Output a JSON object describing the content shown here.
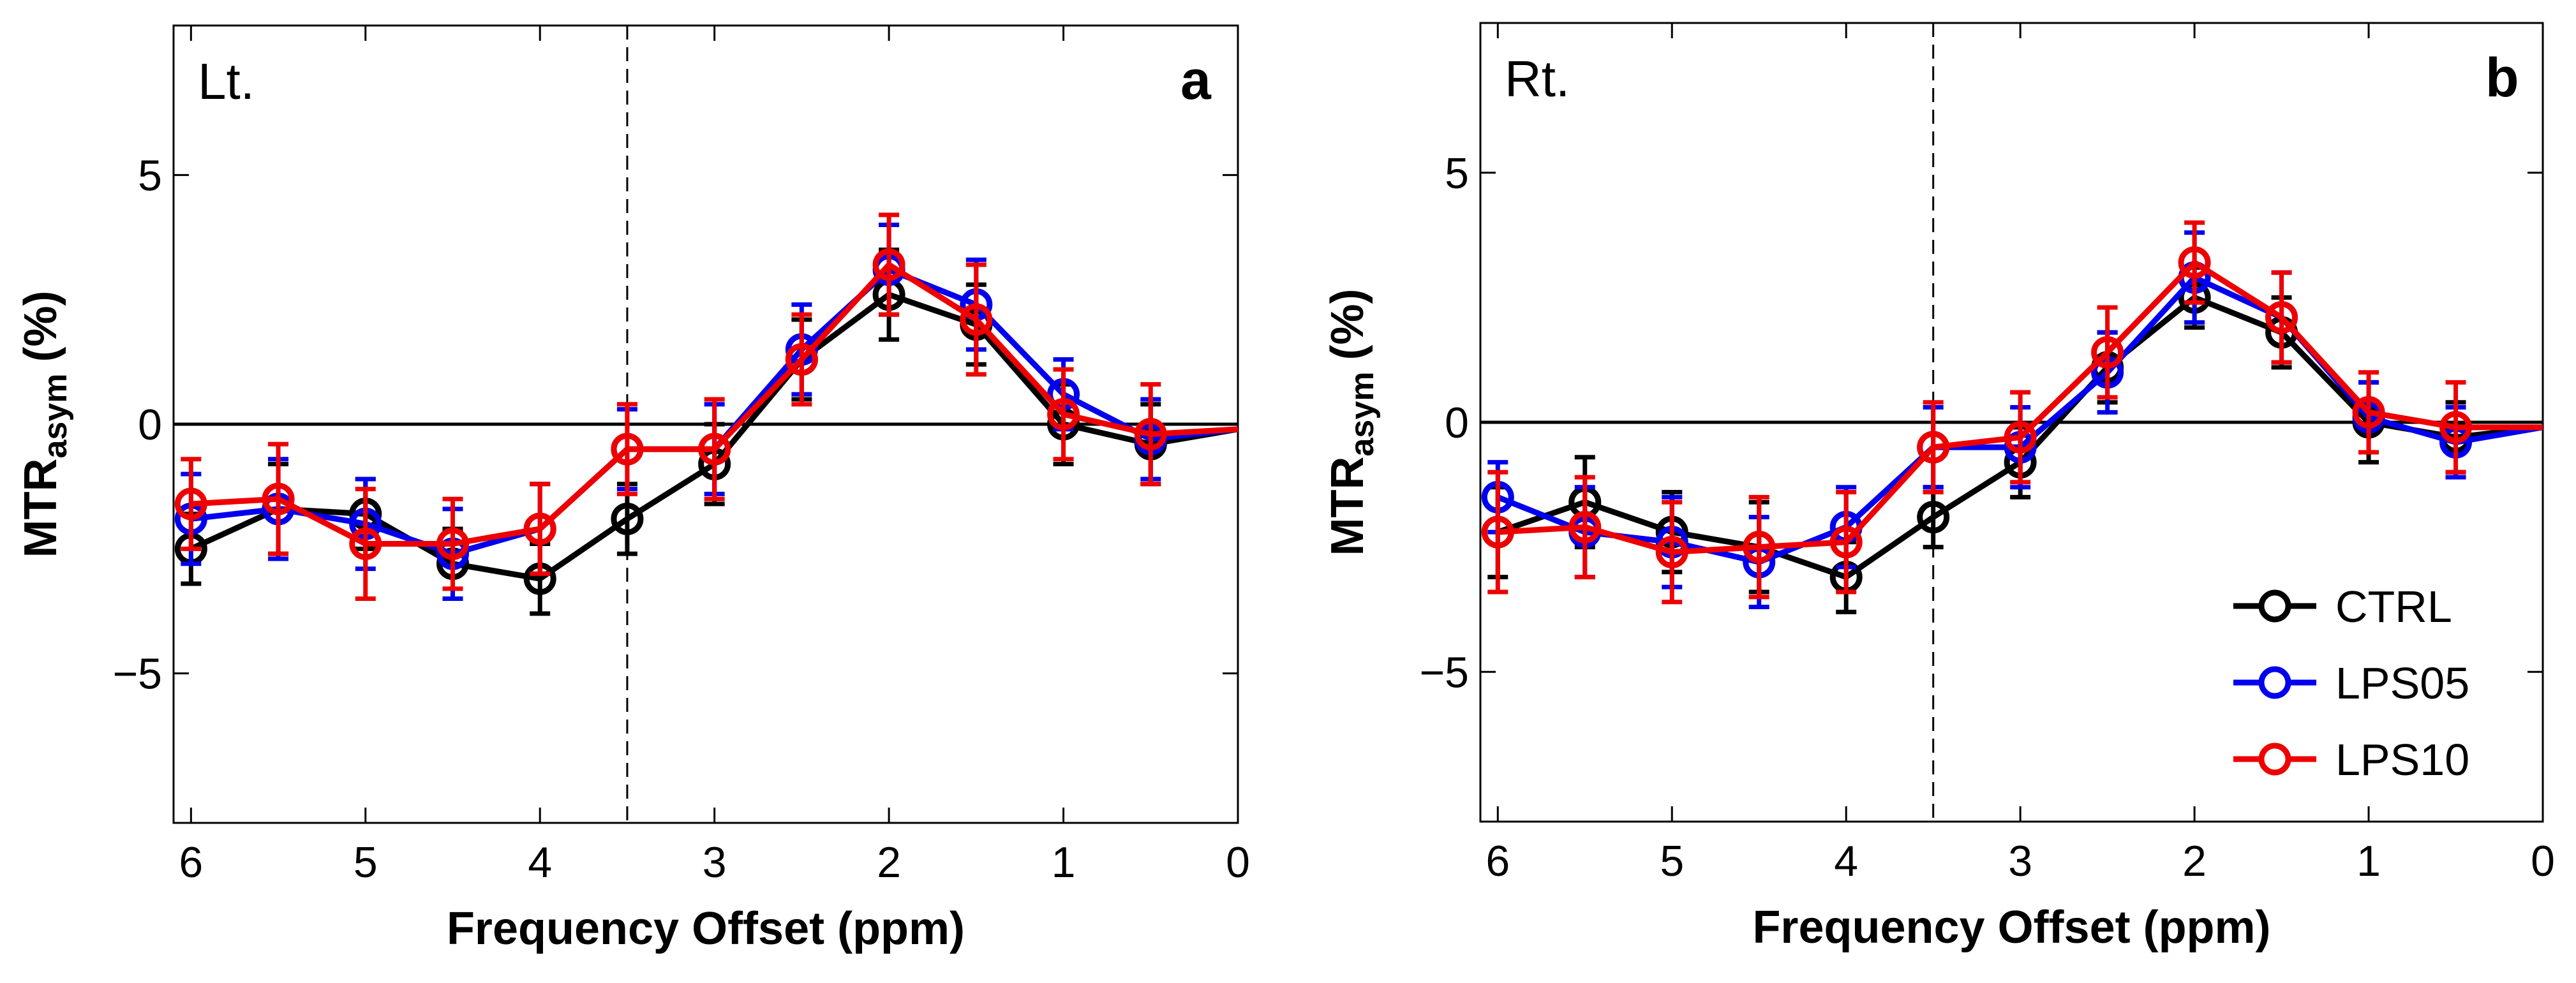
{
  "chart_data": [
    {
      "type": "line",
      "panel_tag": "Lt.",
      "panel_letter": "a",
      "xlabel": "Frequency Offset (ppm)",
      "ylabel_main": "MTR",
      "ylabel_sub": "asym",
      "ylabel_unit": "(%)",
      "x_reversed": true,
      "xlim": [
        0,
        6.1
      ],
      "ylim": [
        -8,
        8
      ],
      "xticks": [
        6,
        5,
        4,
        3,
        2,
        1,
        0
      ],
      "yticks": [
        5,
        0,
        -5
      ],
      "ytick_labels": [
        "5",
        "0",
        "−5"
      ],
      "zero_line": 0,
      "vline": 3.5,
      "x": [
        6,
        5.5,
        5,
        4.5,
        4,
        3.5,
        3,
        2.5,
        2,
        1.5,
        1,
        0.5,
        0
      ],
      "series": [
        {
          "name": "CTRL",
          "color": "#000000",
          "values": [
            -2.5,
            -1.7,
            -1.8,
            -2.8,
            -3.1,
            -1.9,
            -0.8,
            1.3,
            2.6,
            2.0,
            0.0,
            -0.4,
            -0.1
          ],
          "errors": [
            0.7,
            0.9,
            0.7,
            0.7,
            0.7,
            0.7,
            0.8,
            0.8,
            0.9,
            0.8,
            0.8,
            0.8,
            0
          ]
        },
        {
          "name": "LPS05",
          "color": "#0000ee",
          "values": [
            -1.9,
            -1.7,
            -2.0,
            -2.6,
            -2.1,
            -0.5,
            -0.5,
            1.5,
            3.1,
            2.4,
            0.6,
            -0.3,
            -0.1
          ],
          "errors": [
            0.9,
            1.0,
            0.9,
            0.9,
            0.9,
            0.8,
            0.9,
            0.9,
            0.9,
            0.9,
            0.7,
            0.8,
            0
          ]
        },
        {
          "name": "LPS10",
          "color": "#ee0000",
          "values": [
            -1.6,
            -1.5,
            -2.4,
            -2.4,
            -2.1,
            -0.5,
            -0.5,
            1.3,
            3.2,
            2.1,
            0.2,
            -0.2,
            -0.1
          ],
          "errors": [
            0.9,
            1.1,
            1.1,
            0.9,
            0.9,
            0.9,
            1.0,
            0.9,
            1.0,
            1.1,
            0.9,
            1.0,
            0
          ]
        }
      ]
    },
    {
      "type": "line",
      "panel_tag": "Rt.",
      "panel_letter": "b",
      "xlabel": "Frequency Offset (ppm)",
      "ylabel_main": "MTR",
      "ylabel_sub": "asym",
      "ylabel_unit": "(%)",
      "x_reversed": true,
      "xlim": [
        0,
        6.1
      ],
      "ylim": [
        -8,
        8
      ],
      "xticks": [
        6,
        5,
        4,
        3,
        2,
        1,
        0
      ],
      "yticks": [
        5,
        0,
        -5
      ],
      "ytick_labels": [
        "5",
        "0",
        "−5"
      ],
      "zero_line": 0,
      "vline": 3.5,
      "x": [
        6,
        5.5,
        5,
        4.5,
        4,
        3.5,
        3,
        2.5,
        2,
        1.5,
        1,
        0.5,
        0
      ],
      "legend": {
        "position": "bottom-right",
        "entries": [
          "CTRL",
          "LPS05",
          "LPS10"
        ]
      },
      "series": [
        {
          "name": "CTRL",
          "color": "#000000",
          "values": [
            -2.2,
            -1.6,
            -2.2,
            -2.5,
            -3.1,
            -1.9,
            -0.8,
            1.1,
            2.5,
            1.8,
            0.0,
            -0.3,
            -0.1
          ],
          "errors": [
            0.9,
            0.9,
            0.8,
            0.9,
            0.7,
            0.6,
            0.7,
            0.7,
            0.6,
            0.7,
            0.8,
            0.7,
            0
          ]
        },
        {
          "name": "LPS05",
          "color": "#0000ee",
          "values": [
            -1.5,
            -2.2,
            -2.4,
            -2.8,
            -2.1,
            -0.5,
            -0.5,
            1.0,
            2.9,
            2.1,
            0.1,
            -0.4,
            -0.1
          ],
          "errors": [
            0.7,
            0.9,
            0.9,
            0.9,
            0.8,
            0.8,
            0.8,
            0.8,
            0.9,
            0.9,
            0.7,
            0.7,
            0
          ]
        },
        {
          "name": "LPS10",
          "color": "#ee0000",
          "values": [
            -2.2,
            -2.1,
            -2.6,
            -2.5,
            -2.4,
            -0.5,
            -0.3,
            1.4,
            3.2,
            2.1,
            0.2,
            -0.1,
            -0.1
          ],
          "errors": [
            1.2,
            1.0,
            1.0,
            1.0,
            1.0,
            0.9,
            0.9,
            0.9,
            0.8,
            0.9,
            0.8,
            0.9,
            0
          ]
        }
      ]
    }
  ]
}
